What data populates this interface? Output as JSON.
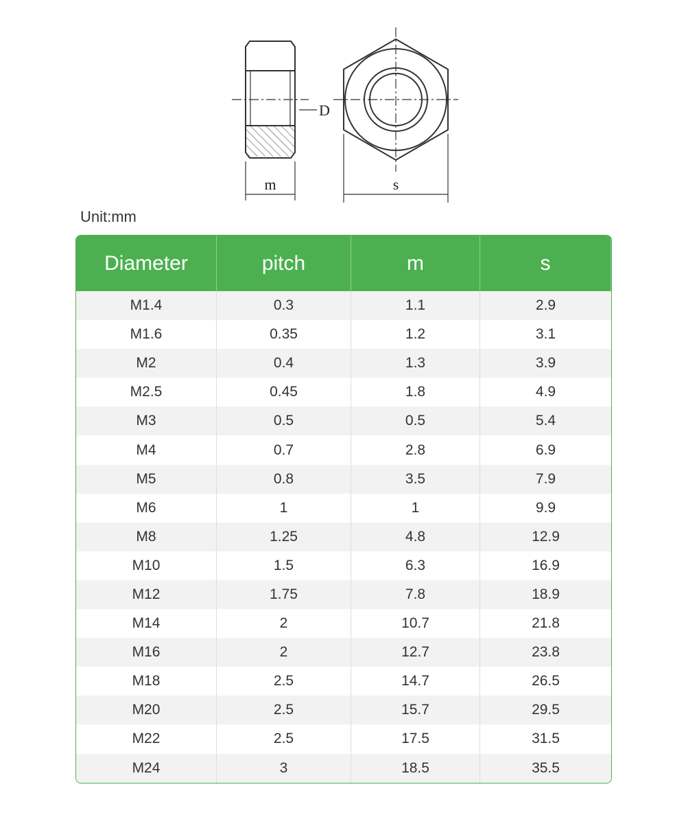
{
  "diagram": {
    "label_d": "D",
    "label_m": "m",
    "label_s": "s"
  },
  "unit": "Unit:mm",
  "table": {
    "headers": [
      "Diameter",
      "pitch",
      "m",
      "s"
    ],
    "rows": [
      [
        "M1.4",
        "0.3",
        "1.1",
        "2.9"
      ],
      [
        "M1.6",
        "0.35",
        "1.2",
        "3.1"
      ],
      [
        "M2",
        "0.4",
        "1.3",
        "3.9"
      ],
      [
        "M2.5",
        "0.45",
        "1.8",
        "4.9"
      ],
      [
        "M3",
        "0.5",
        "0.5",
        "5.4"
      ],
      [
        "M4",
        "0.7",
        "2.8",
        "6.9"
      ],
      [
        "M5",
        "0.8",
        "3.5",
        "7.9"
      ],
      [
        "M6",
        "1",
        "1",
        "9.9"
      ],
      [
        "M8",
        "1.25",
        "4.8",
        "12.9"
      ],
      [
        "M10",
        "1.5",
        "6.3",
        "16.9"
      ],
      [
        "M12",
        "1.75",
        "7.8",
        "18.9"
      ],
      [
        "M14",
        "2",
        "10.7",
        "21.8"
      ],
      [
        "M16",
        "2",
        "12.7",
        "23.8"
      ],
      [
        "M18",
        "2.5",
        "14.7",
        "26.5"
      ],
      [
        "M20",
        "2.5",
        "15.7",
        "29.5"
      ],
      [
        "M22",
        "2.5",
        "17.5",
        "31.5"
      ],
      [
        "M24",
        "3",
        "18.5",
        "35.5"
      ]
    ]
  }
}
